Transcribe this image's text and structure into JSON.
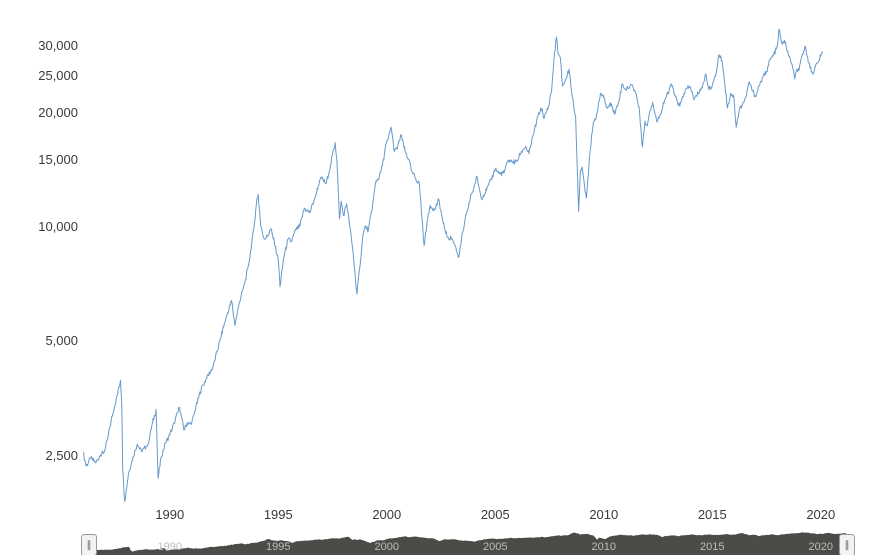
{
  "chart_data": {
    "type": "line",
    "title": "",
    "grid": false,
    "legend": false,
    "line_color": "#6699cc",
    "background_color": "#ffffff",
    "x_axis": {
      "range": [
        1986.0,
        2020.15
      ],
      "ticks": [
        {
          "value": 1990,
          "label": "1990"
        },
        {
          "value": 1995,
          "label": "1995"
        },
        {
          "value": 2000,
          "label": "2000"
        },
        {
          "value": 2005,
          "label": "2005"
        },
        {
          "value": 2010,
          "label": "2010"
        },
        {
          "value": 2015,
          "label": "2015"
        },
        {
          "value": 2020,
          "label": "2020"
        }
      ]
    },
    "y_axis": {
      "scale": "log",
      "range": [
        1800,
        34000
      ],
      "ticks": [
        {
          "value": 2500,
          "label": "2,500"
        },
        {
          "value": 5000,
          "label": "5,000"
        },
        {
          "value": 10000,
          "label": "10,000"
        },
        {
          "value": 15000,
          "label": "15,000"
        },
        {
          "value": 20000,
          "label": "20,000"
        },
        {
          "value": 25000,
          "label": "25,000"
        },
        {
          "value": 30000,
          "label": "30,000"
        }
      ]
    },
    "series": [
      {
        "points": [
          [
            1986.0,
            2550
          ],
          [
            1986.15,
            2350
          ],
          [
            1986.35,
            2460
          ],
          [
            1986.6,
            2400
          ],
          [
            1986.8,
            2510
          ],
          [
            1987.0,
            2568
          ],
          [
            1987.15,
            2800
          ],
          [
            1987.3,
            3100
          ],
          [
            1987.45,
            3360
          ],
          [
            1987.6,
            3650
          ],
          [
            1987.73,
            3950
          ],
          [
            1987.79,
            3400
          ],
          [
            1987.83,
            2300
          ],
          [
            1987.92,
            1895
          ],
          [
            1988.1,
            2250
          ],
          [
            1988.3,
            2480
          ],
          [
            1988.5,
            2680
          ],
          [
            1988.7,
            2560
          ],
          [
            1988.9,
            2640
          ],
          [
            1989.0,
            2687
          ],
          [
            1989.2,
            3050
          ],
          [
            1989.37,
            3310
          ],
          [
            1989.46,
            2180
          ],
          [
            1989.6,
            2480
          ],
          [
            1989.8,
            2700
          ],
          [
            1990.0,
            2836
          ],
          [
            1990.2,
            3050
          ],
          [
            1990.45,
            3350
          ],
          [
            1990.65,
            2920
          ],
          [
            1990.8,
            3050
          ],
          [
            1991.0,
            3024
          ],
          [
            1991.2,
            3350
          ],
          [
            1991.45,
            3750
          ],
          [
            1991.7,
            4000
          ],
          [
            1992.0,
            4297
          ],
          [
            1992.3,
            5000
          ],
          [
            1992.6,
            5800
          ],
          [
            1992.85,
            6400
          ],
          [
            1993.0,
            5512
          ],
          [
            1993.2,
            6300
          ],
          [
            1993.45,
            7100
          ],
          [
            1993.6,
            7800
          ],
          [
            1993.75,
            8800
          ],
          [
            1993.9,
            10200
          ],
          [
            1994.02,
            11888
          ],
          [
            1994.07,
            12201
          ],
          [
            1994.2,
            10000
          ],
          [
            1994.35,
            9300
          ],
          [
            1994.5,
            9450
          ],
          [
            1994.65,
            9900
          ],
          [
            1994.82,
            9100
          ],
          [
            1995.0,
            8191
          ],
          [
            1995.08,
            6968
          ],
          [
            1995.25,
            8300
          ],
          [
            1995.45,
            9300
          ],
          [
            1995.6,
            9150
          ],
          [
            1995.8,
            9800
          ],
          [
            1996.0,
            10073
          ],
          [
            1996.2,
            11200
          ],
          [
            1996.45,
            10900
          ],
          [
            1996.7,
            12000
          ],
          [
            1996.9,
            13200
          ],
          [
            1997.0,
            13451
          ],
          [
            1997.2,
            13000
          ],
          [
            1997.4,
            14500
          ],
          [
            1997.62,
            16673
          ],
          [
            1997.7,
            15000
          ],
          [
            1997.82,
            10500
          ],
          [
            1997.9,
            11700
          ],
          [
            1998.0,
            10722
          ],
          [
            1998.15,
            11500
          ],
          [
            1998.3,
            10000
          ],
          [
            1998.45,
            8500
          ],
          [
            1998.62,
            6660
          ],
          [
            1998.75,
            7800
          ],
          [
            1998.9,
            9500
          ],
          [
            1999.0,
            10048
          ],
          [
            1999.15,
            9800
          ],
          [
            1999.3,
            11000
          ],
          [
            1999.5,
            13200
          ],
          [
            1999.65,
            13500
          ],
          [
            1999.8,
            14500
          ],
          [
            1999.95,
            16400
          ],
          [
            2000.05,
            16962
          ],
          [
            2000.2,
            18302
          ],
          [
            2000.35,
            15800
          ],
          [
            2000.5,
            16200
          ],
          [
            2000.65,
            17500
          ],
          [
            2000.85,
            15800
          ],
          [
            2001.0,
            15095
          ],
          [
            2001.15,
            14000
          ],
          [
            2001.3,
            13500
          ],
          [
            2001.5,
            13000
          ],
          [
            2001.72,
            8934
          ],
          [
            2001.85,
            10200
          ],
          [
            2002.0,
            11397
          ],
          [
            2002.2,
            11100
          ],
          [
            2002.4,
            11800
          ],
          [
            2002.6,
            10200
          ],
          [
            2002.8,
            9400
          ],
          [
            2003.0,
            9321
          ],
          [
            2003.15,
            8900
          ],
          [
            2003.32,
            8331
          ],
          [
            2003.5,
            9700
          ],
          [
            2003.7,
            11000
          ],
          [
            2003.9,
            12200
          ],
          [
            2004.0,
            12575
          ],
          [
            2004.15,
            13600
          ],
          [
            2004.35,
            11900
          ],
          [
            2004.6,
            12500
          ],
          [
            2004.8,
            13300
          ],
          [
            2005.0,
            14230
          ],
          [
            2005.2,
            13800
          ],
          [
            2005.4,
            13900
          ],
          [
            2005.6,
            15000
          ],
          [
            2005.8,
            14800
          ],
          [
            2006.0,
            14876
          ],
          [
            2006.2,
            15800
          ],
          [
            2006.4,
            16300
          ],
          [
            2006.55,
            15600
          ],
          [
            2006.75,
            17500
          ],
          [
            2006.9,
            18900
          ],
          [
            2007.0,
            19964
          ],
          [
            2007.15,
            20500
          ],
          [
            2007.25,
            19300
          ],
          [
            2007.45,
            20800
          ],
          [
            2007.6,
            23000
          ],
          [
            2007.7,
            27500
          ],
          [
            2007.82,
            31638
          ],
          [
            2007.9,
            28500
          ],
          [
            2008.0,
            27812
          ],
          [
            2008.1,
            23500
          ],
          [
            2008.25,
            24500
          ],
          [
            2008.4,
            26000
          ],
          [
            2008.55,
            22000
          ],
          [
            2008.7,
            19500
          ],
          [
            2008.84,
            11000
          ],
          [
            2008.92,
            14000
          ],
          [
            2009.0,
            14387
          ],
          [
            2009.1,
            13000
          ],
          [
            2009.2,
            11921
          ],
          [
            2009.35,
            15500
          ],
          [
            2009.5,
            18500
          ],
          [
            2009.7,
            20000
          ],
          [
            2009.85,
            22500
          ],
          [
            2010.0,
            21872
          ],
          [
            2010.15,
            20600
          ],
          [
            2010.35,
            21100
          ],
          [
            2010.5,
            19800
          ],
          [
            2010.7,
            21500
          ],
          [
            2010.85,
            23800
          ],
          [
            2011.0,
            23035
          ],
          [
            2011.15,
            23200
          ],
          [
            2011.3,
            23700
          ],
          [
            2011.5,
            22300
          ],
          [
            2011.65,
            20000
          ],
          [
            2011.78,
            16250
          ],
          [
            2011.9,
            19000
          ],
          [
            2012.0,
            18434
          ],
          [
            2012.1,
            20000
          ],
          [
            2012.25,
            21300
          ],
          [
            2012.45,
            18900
          ],
          [
            2012.6,
            19800
          ],
          [
            2012.8,
            21600
          ],
          [
            2013.0,
            22656
          ],
          [
            2013.1,
            23800
          ],
          [
            2013.3,
            22000
          ],
          [
            2013.5,
            20800
          ],
          [
            2013.7,
            22500
          ],
          [
            2013.85,
            23200
          ],
          [
            2014.0,
            23306
          ],
          [
            2014.15,
            21600
          ],
          [
            2014.35,
            22500
          ],
          [
            2014.55,
            23500
          ],
          [
            2014.7,
            25300
          ],
          [
            2014.85,
            23000
          ],
          [
            2015.0,
            23605
          ],
          [
            2015.15,
            24900
          ],
          [
            2015.3,
            28433
          ],
          [
            2015.45,
            27400
          ],
          [
            2015.55,
            24600
          ],
          [
            2015.7,
            20556
          ],
          [
            2015.85,
            22500
          ],
          [
            2016.0,
            21914
          ],
          [
            2016.1,
            18319
          ],
          [
            2016.25,
            20400
          ],
          [
            2016.4,
            21100
          ],
          [
            2016.55,
            22000
          ],
          [
            2016.7,
            24100
          ],
          [
            2016.85,
            22800
          ],
          [
            2017.0,
            22000
          ],
          [
            2017.15,
            23500
          ],
          [
            2017.3,
            24600
          ],
          [
            2017.5,
            25700
          ],
          [
            2017.65,
            27500
          ],
          [
            2017.8,
            28200
          ],
          [
            2017.95,
            29400
          ],
          [
            2018.0,
            29919
          ],
          [
            2018.07,
            33154
          ],
          [
            2018.2,
            30500
          ],
          [
            2018.33,
            31000
          ],
          [
            2018.5,
            28500
          ],
          [
            2018.65,
            27000
          ],
          [
            2018.8,
            24540
          ],
          [
            2018.9,
            26000
          ],
          [
            2019.0,
            25845
          ],
          [
            2019.15,
            28500
          ],
          [
            2019.3,
            29800
          ],
          [
            2019.45,
            27000
          ],
          [
            2019.62,
            25281
          ],
          [
            2019.75,
            26500
          ],
          [
            2019.85,
            27000
          ],
          [
            2020.0,
            28189
          ],
          [
            2020.07,
            29056
          ]
        ]
      }
    ]
  },
  "navigator": {
    "handle_glyph": "∥",
    "area_color": "#4b4b47",
    "label_color": "#bdbdbd",
    "year_labels": [
      "1990",
      "1995",
      "2000",
      "2005",
      "2010",
      "2015",
      "2020"
    ]
  }
}
